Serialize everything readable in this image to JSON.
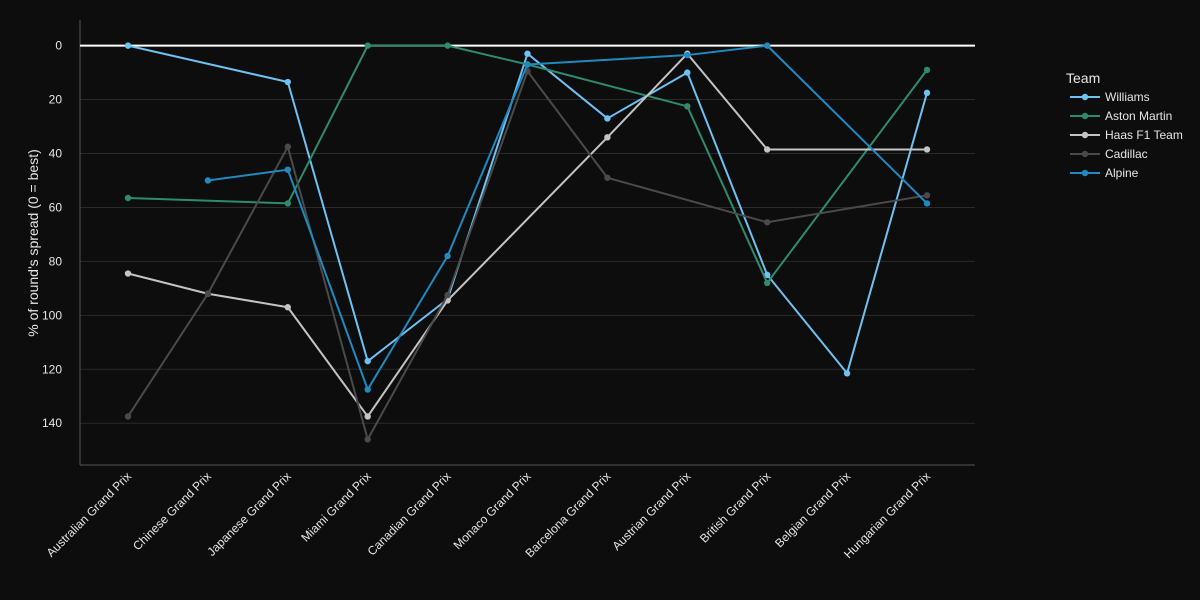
{
  "chart_data": {
    "type": "line",
    "title": "",
    "xlabel": "",
    "ylabel": "% of round's spread (0 = best)",
    "y_reversed": true,
    "ylim": [
      155.5,
      -9.5
    ],
    "yticks": [
      0,
      20,
      40,
      60,
      80,
      100,
      120,
      140
    ],
    "grid": true,
    "zero_line": true,
    "legend_title": "Team",
    "legend_position": "right",
    "categories": [
      "Australian Grand Prix",
      "Chinese Grand Prix",
      "Japanese Grand Prix",
      "Miami Grand Prix",
      "Canadian Grand Prix",
      "Monaco Grand Prix",
      "Barcelona Grand Prix",
      "Austrian Grand Prix",
      "British Grand Prix",
      "Belgian Grand Prix",
      "Hungarian Grand Prix"
    ],
    "series": [
      {
        "name": "Williams",
        "color": "#6ec1f2",
        "values": [
          0,
          null,
          13.5,
          117,
          94,
          3,
          27,
          10,
          85,
          121.5,
          17.5
        ]
      },
      {
        "name": "Aston Martin",
        "color": "#2e8b6e",
        "values": [
          56.5,
          null,
          58.5,
          0,
          0,
          7,
          null,
          22.5,
          88,
          null,
          9
        ]
      },
      {
        "name": "Haas F1 Team",
        "color": "#c4c4c4",
        "values": [
          84.5,
          92,
          97,
          137.5,
          94.5,
          null,
          34,
          3,
          38.5,
          null,
          38.5
        ]
      },
      {
        "name": "Cadillac",
        "color": "#4a4a4a",
        "values": [
          137.5,
          92,
          37.5,
          146,
          92.5,
          9.5,
          49,
          null,
          65.5,
          null,
          55.5
        ]
      },
      {
        "name": "Alpine",
        "color": "#1f8ac0",
        "values": [
          null,
          50,
          46,
          127.5,
          78,
          7,
          null,
          3.5,
          0,
          null,
          58.5
        ]
      }
    ]
  }
}
